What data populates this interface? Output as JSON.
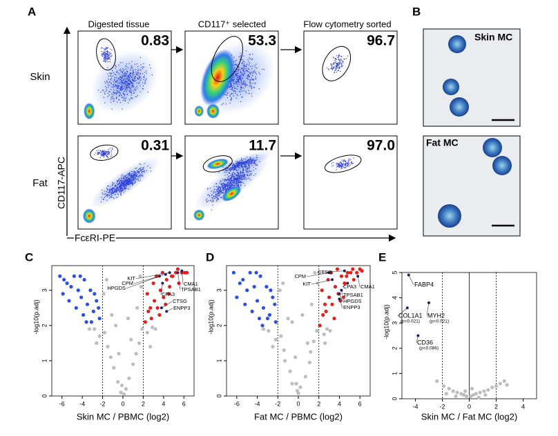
{
  "panel_labels": [
    "A",
    "B",
    "C",
    "D",
    "E"
  ],
  "flow": {
    "columns": [
      "Digested tissue",
      "CD117⁺ selected",
      "Flow cytometry sorted"
    ],
    "rows": [
      "Skin",
      "Fat"
    ],
    "percentages": [
      [
        "0.83",
        "53.3",
        "96.7"
      ],
      [
        "0.31",
        "11.7",
        "97.0"
      ]
    ],
    "y_label": "CD117-APC",
    "x_label": "FcεRI-PE"
  },
  "micrographs": [
    "Skin MC",
    "Fat MC"
  ],
  "volcano": [
    {
      "x_label": "Skin MC / PBMC (log2)",
      "y_label": "-log10(p.adj)",
      "xlim": [
        -7,
        7
      ],
      "ylim": [
        0,
        3.7
      ],
      "xticks": [
        -6,
        -4,
        -2,
        0,
        2,
        4,
        6
      ],
      "yticks": [
        0,
        1,
        2,
        3
      ],
      "thresholds": [
        -2,
        2
      ],
      "series": [
        {
          "color": "#bdbdbd",
          "x": [
            -0.2,
            0.3,
            -0.5,
            0.6,
            -0.9,
            1.0,
            -1.2,
            1.3,
            -1.5,
            1.6,
            -1.8,
            1.9,
            -0.4,
            0.8,
            -1.1,
            1.4,
            -2.3,
            2.4,
            -2.8,
            2.9,
            -3.3,
            3.2,
            -1.9,
            1.8,
            -0.7,
            0.5,
            -1.6,
            1.7,
            -2.6,
            2.7,
            0.1,
            -0.1
          ],
          "y": [
            0.1,
            0.2,
            0.4,
            0.5,
            0.8,
            0.9,
            1.1,
            1.2,
            1.4,
            1.5,
            1.8,
            1.9,
            1.2,
            1.6,
            2.3,
            2.5,
            1.7,
            1.8,
            1.9,
            1.95,
            1.9,
            1.9,
            2.9,
            3.1,
            2.0,
            2.2,
            3.3,
            3.4,
            1.5,
            1.4,
            0.05,
            0.3
          ]
        },
        {
          "color": "#2b4fe0",
          "x": [
            -6.2,
            -5.8,
            -5.5,
            -5.1,
            -4.8,
            -4.4,
            -4.1,
            -3.8,
            -3.5,
            -3.2,
            -2.9,
            -2.6,
            -2.3,
            -5.9,
            -4.6,
            -3.9,
            -3.1,
            -2.4,
            -4.2,
            -2.8,
            -3.6,
            -5.3
          ],
          "y": [
            3.4,
            3.3,
            3.2,
            3.1,
            3.4,
            3.0,
            2.8,
            3.3,
            2.6,
            3.0,
            2.4,
            2.7,
            2.2,
            2.9,
            2.5,
            2.3,
            2.1,
            2.5,
            3.4,
            2.9,
            2.1,
            2.7
          ]
        },
        {
          "color": "#e3201b",
          "x": [
            2.2,
            2.5,
            2.8,
            3.1,
            3.4,
            3.7,
            4.0,
            4.3,
            4.6,
            4.9,
            5.2,
            5.5,
            5.8,
            6.1,
            2.4,
            3.0,
            3.6,
            4.2,
            4.8,
            5.4,
            2.7,
            3.3,
            3.9,
            4.5,
            6.3
          ],
          "y": [
            2.1,
            2.4,
            2.2,
            2.7,
            2.5,
            3.0,
            2.8,
            3.3,
            3.1,
            3.4,
            3.5,
            3.2,
            3.5,
            3.5,
            2.9,
            3.2,
            2.3,
            2.6,
            3.4,
            3.6,
            2.5,
            3.4,
            3.5,
            2.9,
            3.5
          ]
        }
      ],
      "genes": [
        {
          "name": "KIT",
          "x": 4.6,
          "y": 3.5
        },
        {
          "name": "CPM",
          "x": 4.2,
          "y": 3.45
        },
        {
          "name": "HPGDS",
          "x": 3.6,
          "y": 3.4
        },
        {
          "name": "CPA3",
          "x": 3.9,
          "y": 3.2
        },
        {
          "name": "CTSG",
          "x": 3.8,
          "y": 2.5
        },
        {
          "name": "ENPP3",
          "x": 4.3,
          "y": 2.4
        },
        {
          "name": "CMA1",
          "x": 5.8,
          "y": 3.55
        },
        {
          "name": "TPSAB1",
          "x": 5.4,
          "y": 3.5
        }
      ]
    },
    {
      "x_label": "Fat MC / PBMC (log2)",
      "y_label": "-log10(p.adj)",
      "xlim": [
        -7,
        7
      ],
      "ylim": [
        0,
        3.7
      ],
      "xticks": [
        -6,
        -4,
        -2,
        0,
        2,
        4,
        6
      ],
      "yticks": [
        0,
        1,
        2,
        3
      ],
      "thresholds": [
        -2,
        2
      ],
      "series": [
        {
          "color": "#bdbdbd",
          "x": [
            -0.1,
            0.2,
            -0.6,
            0.7,
            -0.8,
            1.1,
            -1.3,
            1.2,
            -1.4,
            1.5,
            -1.7,
            1.8,
            -0.3,
            0.9,
            -1.0,
            1.3,
            -2.2,
            2.5,
            -2.9,
            2.8,
            -3.4,
            3.1,
            -1.8,
            1.9,
            -0.6,
            0.4,
            -1.5,
            1.6,
            -2.5,
            2.6,
            0.0,
            -0.2
          ],
          "y": [
            0.15,
            0.25,
            0.35,
            0.55,
            0.7,
            0.95,
            1.0,
            1.25,
            1.3,
            1.55,
            1.7,
            1.85,
            1.1,
            1.5,
            2.2,
            2.6,
            1.6,
            1.75,
            1.85,
            1.9,
            1.9,
            1.85,
            3.0,
            3.2,
            2.1,
            2.3,
            3.2,
            3.5,
            1.4,
            1.5,
            0.08,
            0.35
          ]
        },
        {
          "color": "#2b4fe0",
          "x": [
            -6.3,
            -5.7,
            -5.4,
            -5.0,
            -4.7,
            -4.3,
            -4.0,
            -3.7,
            -3.4,
            -3.1,
            -2.8,
            -2.5,
            -2.2,
            -6.0,
            -4.5,
            -3.8,
            -3.0,
            -2.3,
            -4.1,
            -2.7,
            -3.5,
            -5.2
          ],
          "y": [
            3.5,
            3.2,
            3.3,
            3.0,
            3.5,
            3.1,
            2.7,
            3.4,
            2.5,
            3.1,
            2.3,
            2.8,
            2.1,
            2.8,
            2.4,
            2.2,
            2.2,
            2.6,
            3.5,
            3.0,
            2.0,
            2.6
          ]
        },
        {
          "color": "#e3201b",
          "x": [
            2.1,
            2.4,
            2.7,
            3.0,
            3.3,
            3.6,
            3.9,
            4.2,
            4.5,
            4.8,
            5.1,
            5.4,
            5.7,
            6.0,
            2.3,
            2.9,
            3.5,
            4.1,
            4.7,
            5.3,
            2.6,
            3.2,
            3.8,
            4.4,
            6.2
          ],
          "y": [
            2.0,
            2.3,
            2.4,
            2.8,
            2.6,
            3.1,
            2.9,
            3.4,
            3.2,
            3.5,
            3.5,
            3.3,
            3.5,
            3.6,
            3.0,
            3.3,
            2.2,
            2.7,
            3.4,
            3.6,
            2.6,
            3.5,
            3.6,
            2.8,
            3.55
          ]
        }
      ],
      "genes": [
        {
          "name": "CPM",
          "x": 3.0,
          "y": 3.5
        },
        {
          "name": "CTSG",
          "x": 4.5,
          "y": 3.55
        },
        {
          "name": "KIT",
          "x": 3.3,
          "y": 3.3
        },
        {
          "name": "CPA3",
          "x": 4.8,
          "y": 3.2
        },
        {
          "name": "CMA1",
          "x": 5.8,
          "y": 3.4
        },
        {
          "name": "TPSAB1",
          "x": 4.2,
          "y": 3.0
        },
        {
          "name": "HPGDS",
          "x": 4.0,
          "y": 2.9
        },
        {
          "name": "ENPP3",
          "x": 4.0,
          "y": 2.75
        }
      ]
    },
    {
      "x_label": "Skin MC / Fat MC (log2)",
      "y_label": "-log10(p.adj)",
      "xlim": [
        -5,
        5
      ],
      "ylim": [
        0,
        5
      ],
      "xticks": [
        -4,
        -2,
        0,
        2,
        4
      ],
      "yticks": [
        0,
        1,
        2,
        3,
        4,
        5
      ],
      "thresholds": [
        -2,
        2
      ],
      "zero_line": true,
      "series": [
        {
          "color": "#bdbdbd",
          "x": [
            -2.4,
            -1.9,
            -1.5,
            -1.2,
            -0.9,
            -0.6,
            -0.4,
            -0.2,
            0.1,
            0.3,
            0.5,
            0.8,
            1.1,
            1.4,
            1.7,
            2.0,
            2.3,
            2.6,
            -1.0,
            0.7,
            1.2,
            -0.3,
            0.2,
            -1.7,
            2.8
          ],
          "y": [
            0.7,
            0.5,
            0.4,
            0.3,
            0.25,
            0.2,
            0.15,
            0.1,
            0.1,
            0.15,
            0.2,
            0.25,
            0.3,
            0.35,
            0.45,
            0.5,
            0.6,
            0.7,
            0.1,
            0.05,
            0.15,
            0.3,
            0.4,
            0.2,
            0.55
          ]
        }
      ],
      "genes": [
        {
          "name": "FABP4",
          "x": -4.5,
          "y": 4.9
        },
        {
          "name": "COL1A1",
          "x": -4.6,
          "y": 3.6,
          "p_label": "(p=0.021)"
        },
        {
          "name": "MYH2",
          "x": -3.0,
          "y": 3.8,
          "p_label": "(p=0.021)"
        },
        {
          "name": "CD36",
          "x": -3.8,
          "y": 2.5,
          "p_label": "(p=0.086)"
        }
      ]
    }
  ]
}
